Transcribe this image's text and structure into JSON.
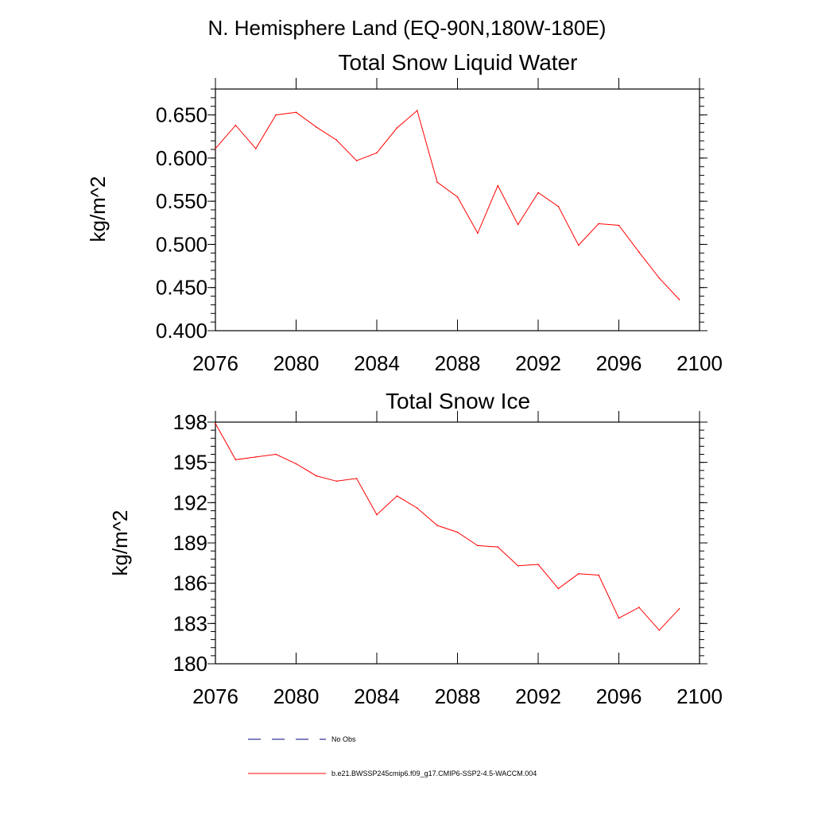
{
  "header": {
    "title": "N. Hemisphere Land (EQ-90N,180W-180E)"
  },
  "chart_data": [
    {
      "type": "line",
      "title": "Total Snow Liquid Water",
      "ylabel": "kg/m^2",
      "xlim": [
        2076,
        2100
      ],
      "ylim": [
        0.4,
        0.68
      ],
      "xticks": [
        2076,
        2080,
        2084,
        2088,
        2092,
        2096,
        2100
      ],
      "xtick_labels": [
        "2076",
        "2080",
        "2084",
        "2088",
        "2092",
        "2096",
        "2100"
      ],
      "yticks": [
        0.4,
        0.45,
        0.5,
        0.55,
        0.6,
        0.65
      ],
      "ytick_labels": [
        "0.400",
        "0.450",
        "0.500",
        "0.550",
        "0.600",
        "0.650"
      ],
      "series": [
        {
          "color": "#ff0000",
          "x": [
            2076,
            2077,
            2078,
            2079,
            2080,
            2081,
            2082,
            2083,
            2084,
            2085,
            2086,
            2087,
            2088,
            2089,
            2090,
            2091,
            2092,
            2093,
            2094,
            2095,
            2096,
            2097,
            2098,
            2099
          ],
          "y": [
            0.611,
            0.638,
            0.611,
            0.65,
            0.653,
            0.636,
            0.621,
            0.597,
            0.606,
            0.635,
            0.655,
            0.572,
            0.555,
            0.513,
            0.568,
            0.523,
            0.56,
            0.544,
            0.499,
            0.524,
            0.522,
            0.491,
            0.461,
            0.436
          ]
        }
      ]
    },
    {
      "type": "line",
      "title": "Total Snow Ice",
      "ylabel": "kg/m^2",
      "xlim": [
        2076,
        2100
      ],
      "ylim": [
        180,
        198
      ],
      "xticks": [
        2076,
        2080,
        2084,
        2088,
        2092,
        2096,
        2100
      ],
      "xtick_labels": [
        "2076",
        "2080",
        "2084",
        "2088",
        "2092",
        "2096",
        "2100"
      ],
      "yticks": [
        180,
        183,
        186,
        189,
        192,
        195,
        198
      ],
      "ytick_labels": [
        "180",
        "183",
        "186",
        "189",
        "192",
        "195",
        "198"
      ],
      "series": [
        {
          "color": "#ff0000",
          "x": [
            2076,
            2077,
            2078,
            2079,
            2080,
            2081,
            2082,
            2083,
            2084,
            2085,
            2086,
            2087,
            2088,
            2089,
            2090,
            2091,
            2092,
            2093,
            2094,
            2095,
            2096,
            2097,
            2098,
            2099
          ],
          "y": [
            197.9,
            195.2,
            195.4,
            195.6,
            194.9,
            194.0,
            193.6,
            193.8,
            191.1,
            192.5,
            191.6,
            190.3,
            189.8,
            188.8,
            188.7,
            187.3,
            187.4,
            185.6,
            186.7,
            186.6,
            183.4,
            184.2,
            182.5,
            184.1
          ]
        }
      ]
    }
  ],
  "legend": {
    "items": [
      {
        "label": "No Obs",
        "color": "#000080",
        "style": "dashed"
      },
      {
        "label": "b.e21.BWSSP245cmip6.f09_g17.CMIP6-SSP2-4.5-WACCM.004",
        "color": "#ff0000",
        "style": "solid"
      }
    ]
  }
}
